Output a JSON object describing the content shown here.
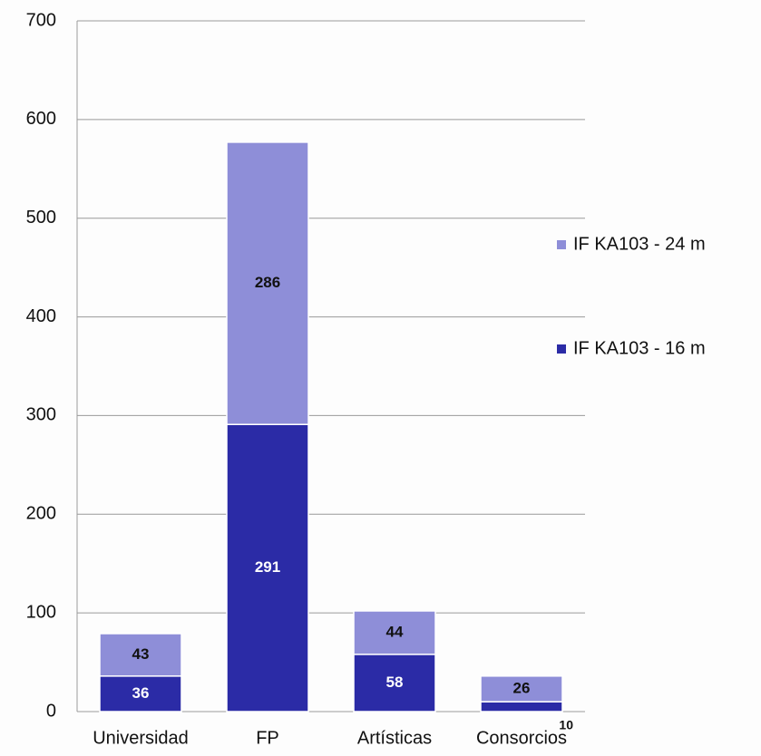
{
  "chart_data": {
    "type": "stacked_bar",
    "categories": [
      "Universidad",
      "FP",
      "Artísticas",
      "Consorcios"
    ],
    "series": [
      {
        "name": "IF KA103 - 16 m",
        "color": "#2b2ba6",
        "values": [
          36,
          291,
          58,
          10
        ]
      },
      {
        "name": "IF KA103 - 24 m",
        "color": "#8e8ed8",
        "values": [
          43,
          286,
          44,
          26
        ]
      }
    ],
    "ylim": [
      0,
      700
    ],
    "yticks": [
      0,
      100,
      200,
      300,
      400,
      500,
      600,
      700
    ],
    "grid": true
  }
}
